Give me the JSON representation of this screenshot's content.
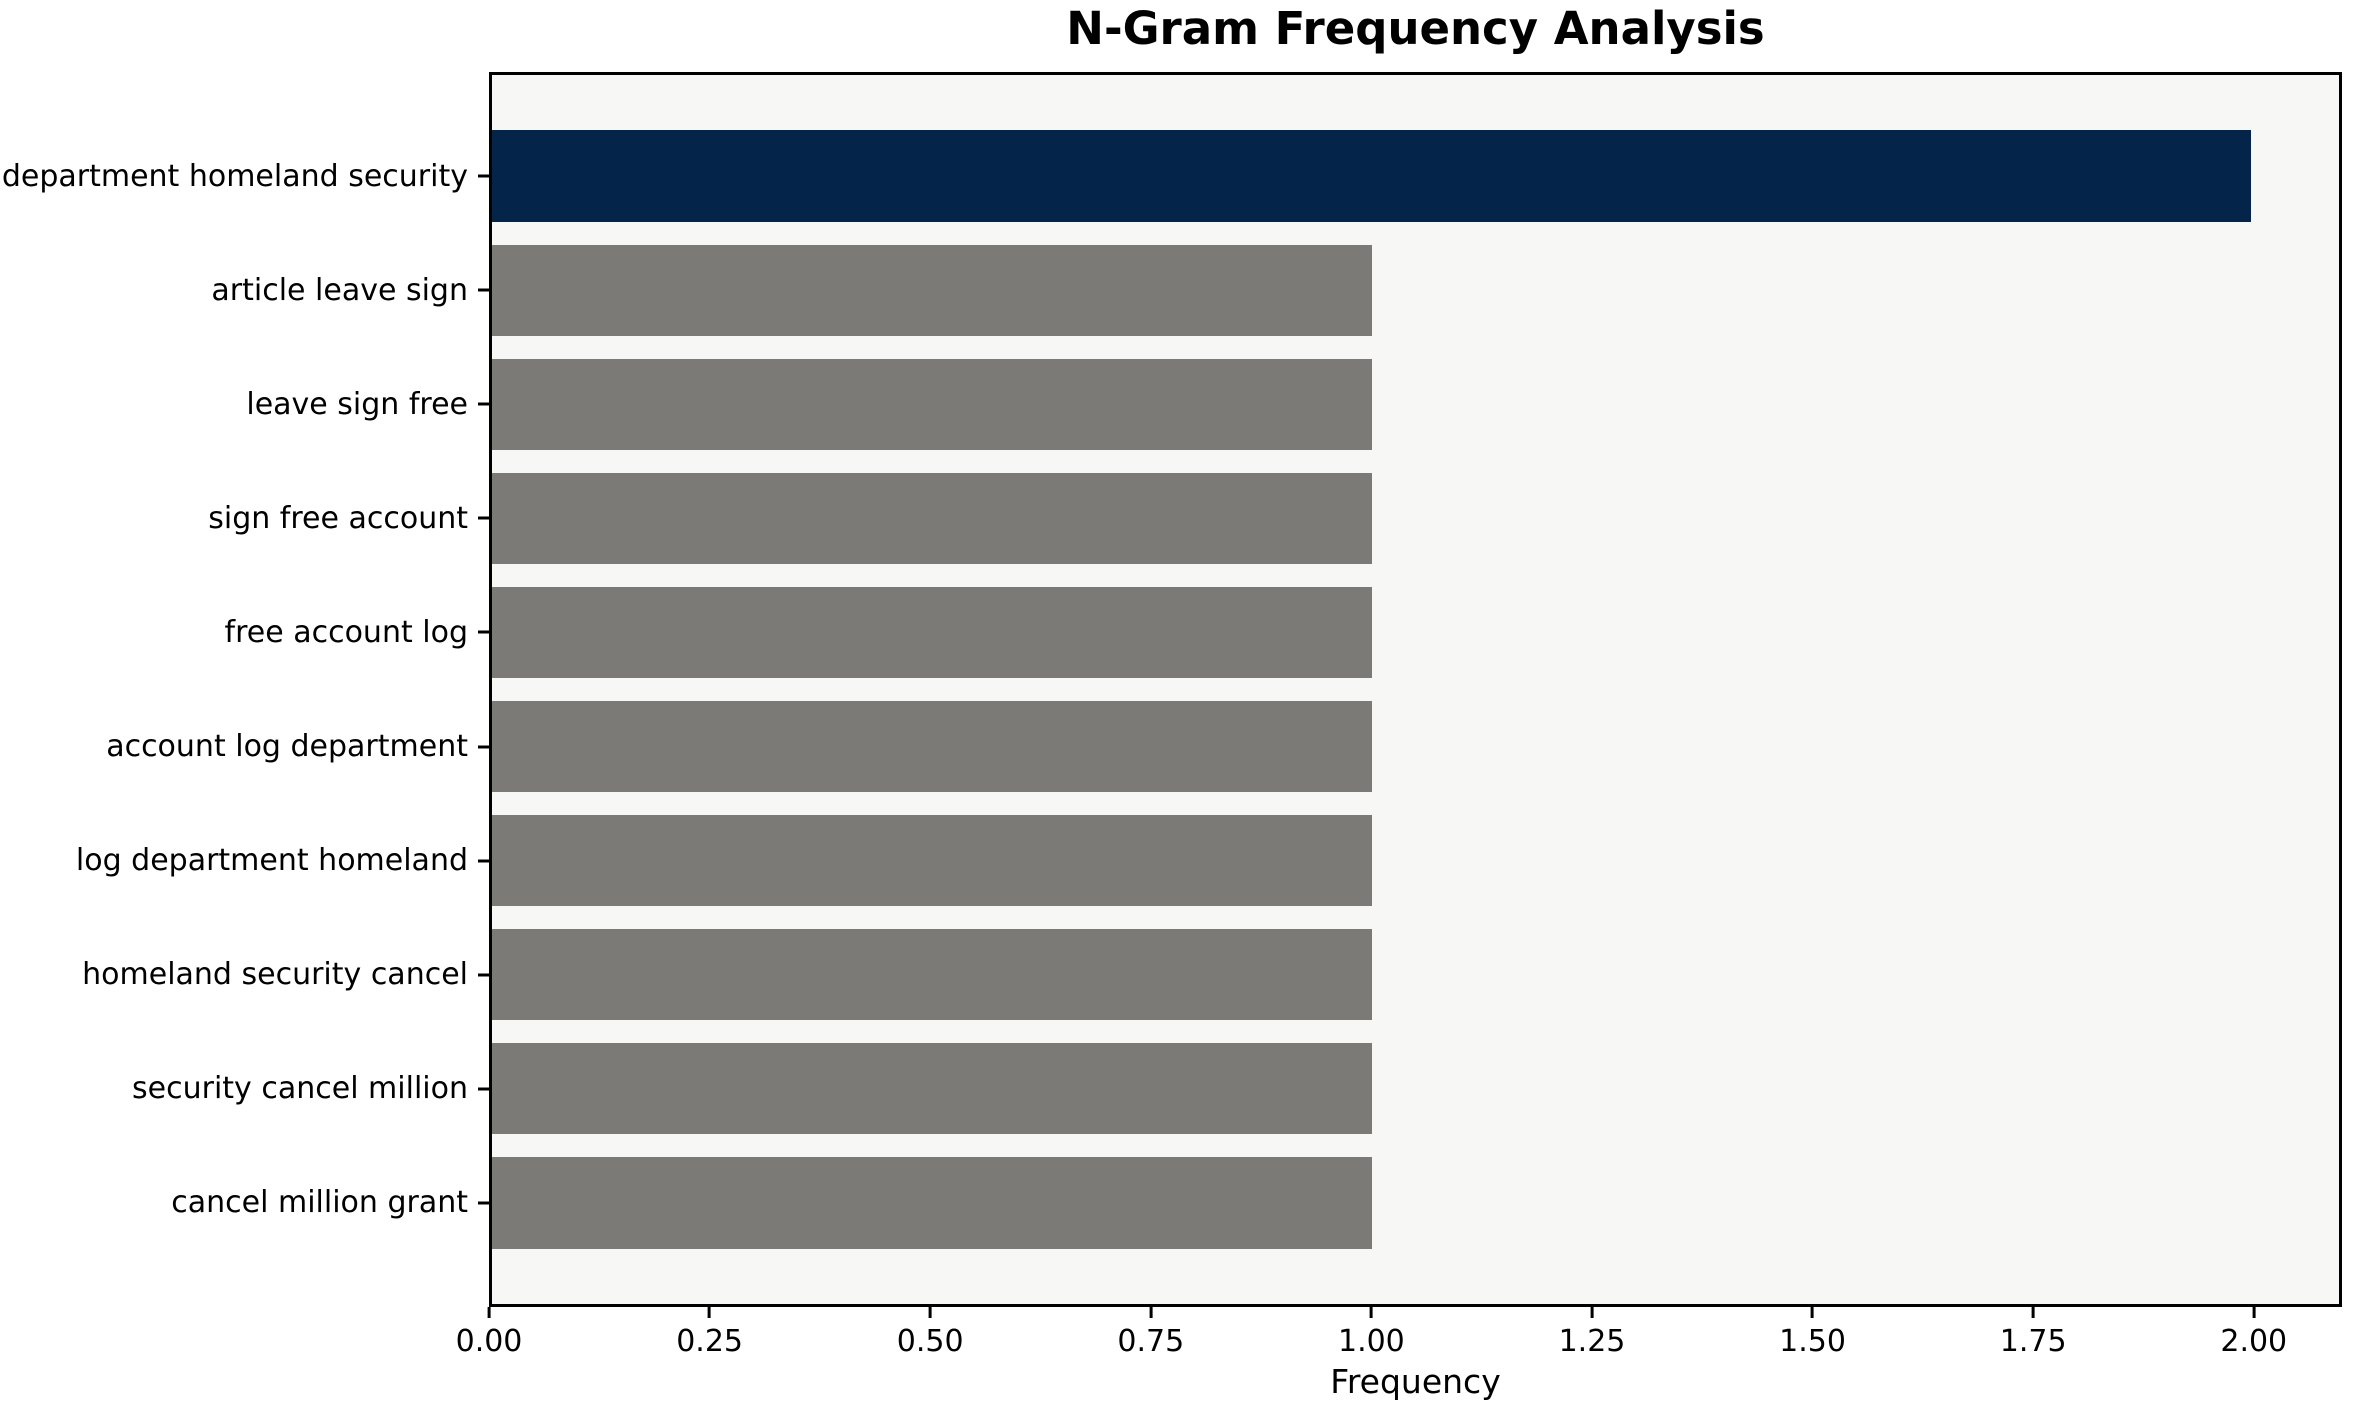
{
  "chart": {
    "title": "N-Gram Frequency Analysis"
  },
  "chart_data": {
    "type": "bar",
    "orientation": "horizontal",
    "title": "N-Gram Frequency Analysis",
    "xlabel": "Frequency",
    "ylabel": "",
    "categories": [
      "department homeland security",
      "article leave sign",
      "leave sign free",
      "sign free account",
      "free account log",
      "account log department",
      "log department homeland",
      "homeland security cancel",
      "security cancel million",
      "cancel million grant"
    ],
    "values": [
      2,
      1,
      1,
      1,
      1,
      1,
      1,
      1,
      1,
      1
    ],
    "bar_colors": [
      "#052449",
      "#7b7a77",
      "#7b7a77",
      "#7b7a77",
      "#7b7a77",
      "#7b7a77",
      "#7b7a77",
      "#7b7a77",
      "#7b7a77",
      "#7b7a77"
    ],
    "xlim": [
      0,
      2.1
    ],
    "xtick_values": [
      0,
      0.25,
      0.5,
      0.75,
      1.0,
      1.25,
      1.5,
      1.75,
      2.0
    ],
    "xtick_labels": [
      "0.00",
      "0.25",
      "0.50",
      "0.75",
      "1.00",
      "1.25",
      "1.50",
      "1.75",
      "2.00"
    ],
    "grid": false,
    "legend": null,
    "colors": {
      "highlight": "#052449",
      "default_bar": "#7b7a77",
      "plot_background": "#f7f7f6",
      "figure_background": "#ffffff",
      "axis": "#000000",
      "text": "#000000"
    }
  }
}
